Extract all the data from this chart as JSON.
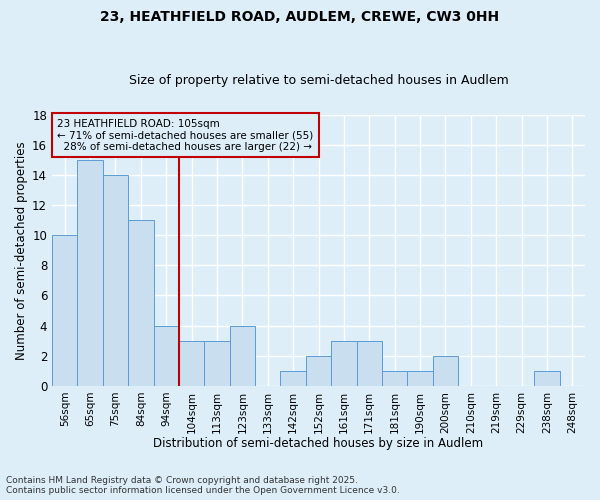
{
  "title1": "23, HEATHFIELD ROAD, AUDLEM, CREWE, CW3 0HH",
  "title2": "Size of property relative to semi-detached houses in Audlem",
  "xlabel": "Distribution of semi-detached houses by size in Audlem",
  "ylabel": "Number of semi-detached properties",
  "bin_labels": [
    "56sqm",
    "65sqm",
    "75sqm",
    "84sqm",
    "94sqm",
    "104sqm",
    "113sqm",
    "123sqm",
    "133sqm",
    "142sqm",
    "152sqm",
    "161sqm",
    "171sqm",
    "181sqm",
    "190sqm",
    "200sqm",
    "210sqm",
    "219sqm",
    "229sqm",
    "238sqm",
    "248sqm"
  ],
  "bar_values": [
    10,
    15,
    14,
    11,
    4,
    3,
    3,
    4,
    0,
    1,
    2,
    3,
    3,
    1,
    1,
    2,
    0,
    0,
    0,
    1,
    0
  ],
  "bar_color": "#c9dff0",
  "bar_edge_color": "#5b9bd5",
  "highlight_bin_index": 5,
  "highlight_color": "#c00000",
  "subject_label": "23 HEATHFIELD ROAD: 105sqm",
  "pct_smaller": 71,
  "count_smaller": 55,
  "pct_larger": 28,
  "count_larger": 22,
  "annotation_box_color": "#c00000",
  "ylim": [
    0,
    18
  ],
  "yticks": [
    0,
    2,
    4,
    6,
    8,
    10,
    12,
    14,
    16,
    18
  ],
  "footer": "Contains HM Land Registry data © Crown copyright and database right 2025.\nContains public sector information licensed under the Open Government Licence v3.0.",
  "bg_color": "#ddeef9",
  "grid_color": "#ffffff",
  "title_fontsize": 10,
  "subtitle_fontsize": 9
}
